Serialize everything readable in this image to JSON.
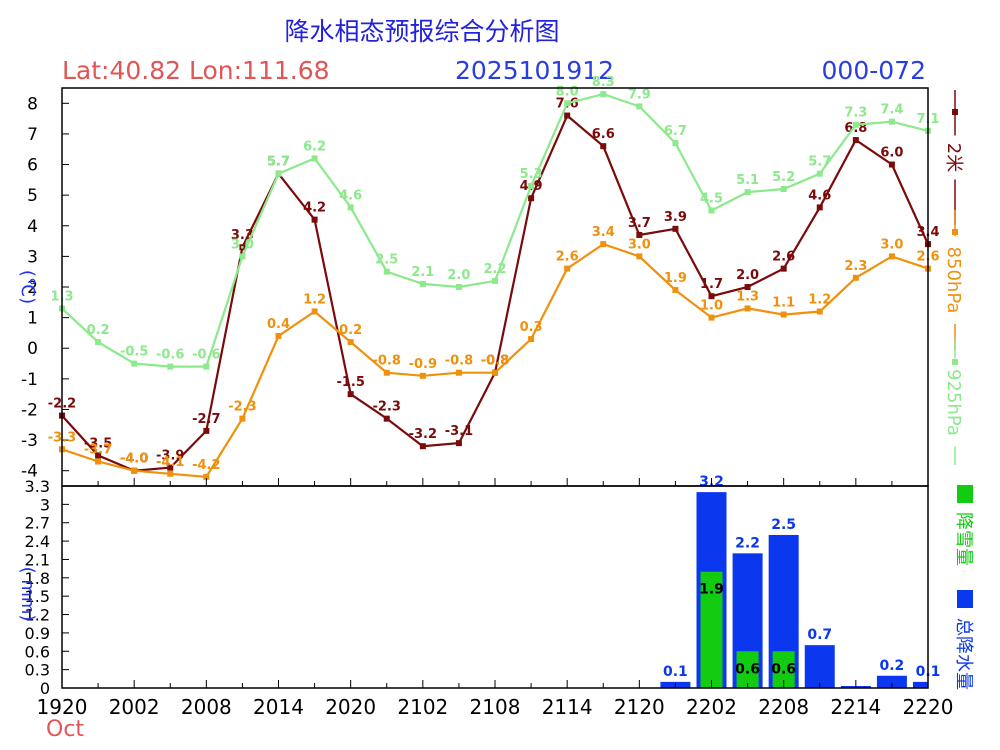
{
  "header": {
    "title": "降水相态预报综合分析图",
    "location": "Lat:40.82 Lon:111.68",
    "init_time": "2025101912",
    "forecast_range": "000-072",
    "month": "Oct"
  },
  "colors": {
    "title": "#2222dd",
    "location": "#e05555",
    "init_time": "#2a3ee0",
    "t2m": "#7b0a0a",
    "t850": "#f0910e",
    "t925": "#8ce98c",
    "snow": "#11cc11",
    "precip": "#0b38ee",
    "axis_unit": "#2233ee"
  },
  "chart_data": [
    {
      "type": "line",
      "title": "降水相态预报综合分析图",
      "ylabel": "(℃)",
      "ylim": [
        -4.5,
        8.5
      ],
      "yticks": [
        -4,
        -3,
        -2,
        -1,
        0,
        1,
        2,
        3,
        4,
        5,
        6,
        7,
        8
      ],
      "grid": false,
      "legend_position": "right",
      "x": [
        "1920",
        "1923",
        "2002",
        "2005",
        "2008",
        "2011",
        "2014",
        "2017",
        "2020",
        "2023",
        "2102",
        "2105",
        "2108",
        "2111",
        "2114",
        "2117",
        "2120",
        "2123",
        "2202",
        "2205",
        "2208",
        "2211",
        "2214",
        "2217",
        "2220"
      ],
      "series": [
        {
          "name": "2米",
          "color_key": "t2m",
          "values": [
            -2.2,
            -3.5,
            -4.0,
            -3.9,
            -2.7,
            3.3,
            5.7,
            4.2,
            -1.5,
            -2.3,
            -3.2,
            -3.1,
            -0.8,
            4.9,
            7.6,
            6.6,
            3.7,
            3.9,
            1.7,
            2.0,
            2.6,
            4.6,
            6.8,
            6.0,
            3.4
          ]
        },
        {
          "name": "850hPa",
          "color_key": "t850",
          "values": [
            -3.3,
            -3.7,
            -4.0,
            -4.1,
            -4.2,
            -2.3,
            0.4,
            1.2,
            0.2,
            -0.8,
            -0.9,
            -0.8,
            -0.8,
            0.3,
            2.6,
            3.4,
            3.0,
            1.9,
            1.0,
            1.3,
            1.1,
            1.2,
            2.3,
            3.0,
            2.6
          ]
        },
        {
          "name": "925hPa",
          "color_key": "t925",
          "values": [
            1.3,
            0.2,
            -0.5,
            -0.6,
            -0.6,
            3.0,
            5.7,
            6.2,
            4.6,
            2.5,
            2.1,
            2.0,
            2.2,
            5.3,
            8.0,
            8.3,
            7.9,
            6.7,
            4.5,
            5.1,
            5.2,
            5.7,
            7.3,
            7.4,
            7.1
          ]
        }
      ]
    },
    {
      "type": "bar",
      "ylabel": "( mm)",
      "ylim": [
        0,
        3.3
      ],
      "yticks": [
        "0",
        "0.3",
        "0.6",
        "0.9",
        "1.2",
        "1.5",
        "1.8",
        "2.1",
        "2.4",
        "2.7",
        "3",
        "3.3"
      ],
      "xticks": [
        "1920",
        "2002",
        "2008",
        "2014",
        "2020",
        "2102",
        "2108",
        "2114",
        "2120",
        "2202",
        "2208",
        "2214",
        "2220"
      ],
      "legend_position": "right",
      "categories": [
        "2123",
        "2202",
        "2205",
        "2208",
        "2211",
        "2214",
        "2217",
        "2220"
      ],
      "series": [
        {
          "name": "总降水量",
          "color_key": "precip",
          "values": [
            0.1,
            3.2,
            2.2,
            2.5,
            0.7,
            0.0,
            0.2,
            0.1
          ],
          "labels": [
            "0.1",
            "3.2",
            "2.2",
            "2.5",
            "0.7",
            "",
            "0.2",
            "0.1"
          ]
        },
        {
          "name": "降雪量",
          "color_key": "snow",
          "values": [
            0,
            1.9,
            0.6,
            0.6,
            0,
            0,
            0,
            0
          ],
          "labels": [
            "",
            "1.9",
            "0.6",
            "0.6",
            "",
            "",
            "",
            ""
          ]
        }
      ]
    }
  ]
}
